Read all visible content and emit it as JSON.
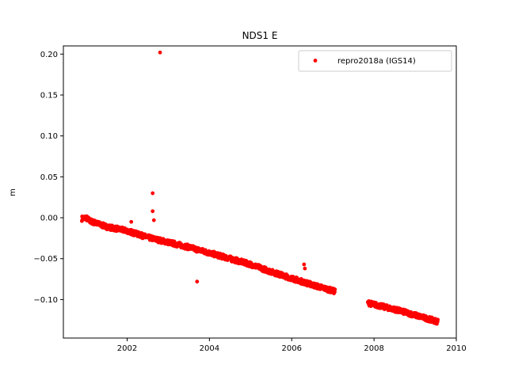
{
  "chart_data": {
    "type": "scatter",
    "title": "NDS1 E",
    "xlabel": "",
    "ylabel": "m",
    "xlim": [
      2000.45,
      2010.0
    ],
    "ylim": [
      -0.147,
      0.21
    ],
    "xticks": [
      2002,
      2004,
      2006,
      2008,
      2010
    ],
    "yticks": [
      -0.1,
      -0.05,
      0.0,
      0.05,
      0.1,
      0.15,
      0.2
    ],
    "xtick_labels": [
      "2002",
      "2004",
      "2006",
      "2008",
      "2010"
    ],
    "ytick_labels": [
      "−0.10",
      "−0.05",
      "0.00",
      "0.05",
      "0.10",
      "0.15",
      "0.20"
    ],
    "grid": false,
    "legend_position": "top-right",
    "series": [
      {
        "name": "repro2018a (IGS14)",
        "color": "#ff0000",
        "marker": "circle",
        "segments": [
          {
            "x": [
              2000.9,
              2001.0,
              2001.1,
              2001.5,
              2002.0,
              2002.5,
              2003.0,
              2003.5,
              2004.0,
              2004.5,
              2005.0,
              2005.5,
              2006.0,
              2006.5,
              2007.05
            ],
            "y": [
              -0.001,
              0.0,
              -0.004,
              -0.011,
              -0.016,
              -0.024,
              -0.03,
              -0.036,
              -0.043,
              -0.05,
              -0.057,
              -0.066,
              -0.074,
              -0.082,
              -0.09
            ]
          },
          {
            "x": [
              2007.85,
              2008.0,
              2008.5,
              2009.0,
              2009.55
            ],
            "y": [
              -0.104,
              -0.106,
              -0.112,
              -0.119,
              -0.127
            ]
          }
        ],
        "outliers": {
          "x": [
            2002.1,
            2002.62,
            2002.62,
            2002.65,
            2002.8,
            2003.7,
            2006.3,
            2006.32
          ],
          "y": [
            -0.005,
            0.03,
            0.008,
            -0.003,
            0.202,
            -0.078,
            -0.057,
            -0.062
          ]
        }
      }
    ]
  }
}
